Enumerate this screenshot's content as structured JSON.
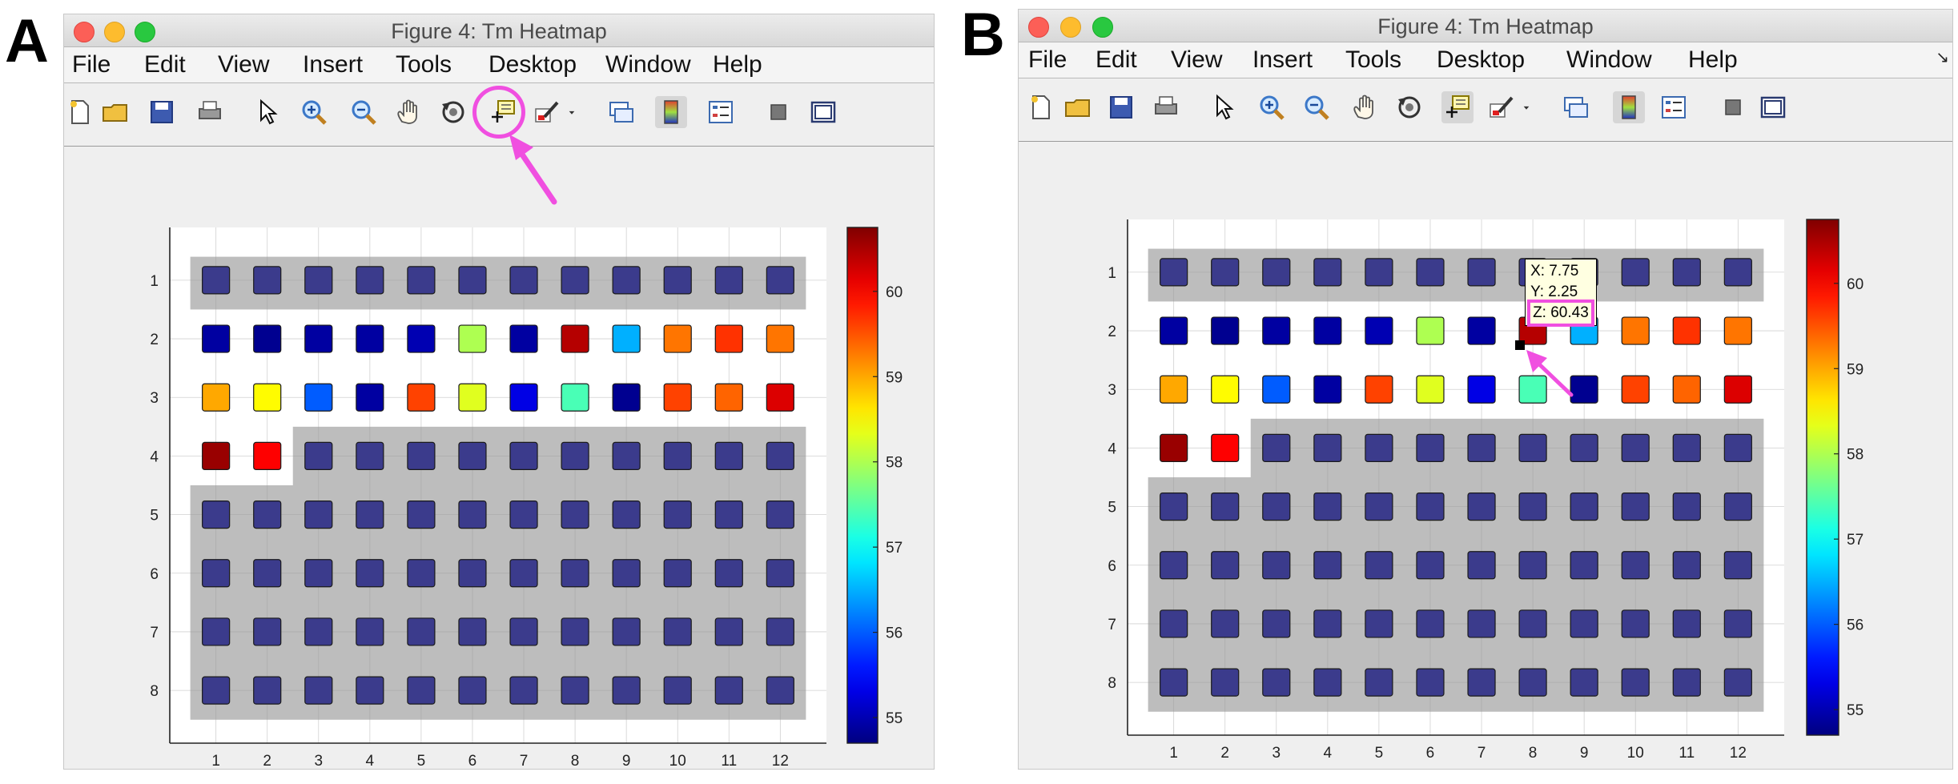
{
  "panels": [
    {
      "letter": "A",
      "window_title": "Figure 4: Tm Heatmap",
      "menu": [
        "File",
        "Edit",
        "View",
        "Insert",
        "Tools",
        "Desktop",
        "Window",
        "Help"
      ],
      "toolbar_icons": [
        "new-figure-icon",
        "open-file-icon",
        "save-icon",
        "print-icon",
        "pointer-icon",
        "zoom-in-icon",
        "zoom-out-icon",
        "pan-icon",
        "rotate-3d-icon",
        "data-cursor-icon",
        "brush-icon",
        "brush-dropdown-icon",
        "link-plot-icon",
        "colorbar-icon",
        "legend-icon",
        "hide-plot-tools-icon",
        "show-plot-tools-icon"
      ],
      "highlighted_tool": "data-cursor-icon",
      "datatip": null
    },
    {
      "letter": "B",
      "window_title": "Figure 4: Tm Heatmap",
      "menu": [
        "File",
        "Edit",
        "View",
        "Insert",
        "Tools",
        "Desktop",
        "Window",
        "Help"
      ],
      "toolbar_icons": [
        "new-figure-icon",
        "open-file-icon",
        "save-icon",
        "print-icon",
        "pointer-icon",
        "zoom-in-icon",
        "zoom-out-icon",
        "pan-icon",
        "rotate-3d-icon",
        "data-cursor-icon",
        "brush-icon",
        "brush-dropdown-icon",
        "link-plot-icon",
        "colorbar-icon",
        "legend-icon",
        "hide-plot-tools-icon",
        "show-plot-tools-icon"
      ],
      "highlighted_tool": null,
      "datatip": {
        "x_text": "X: 7.75",
        "y_text": "Y: 2.25",
        "z_text": "Z: 60.43",
        "x": 7.75,
        "y": 2.25
      }
    }
  ],
  "colors": {
    "arrow": "#f04fe0",
    "unfilled_well": "#3b3b8c",
    "masked_region": "#bdbdbd"
  },
  "chart_data": {
    "type": "heatmap",
    "title": "",
    "xlabel": "",
    "ylabel": "",
    "x": [
      1,
      2,
      3,
      4,
      5,
      6,
      7,
      8,
      9,
      10,
      11,
      12
    ],
    "y": [
      1,
      2,
      3,
      4,
      5,
      6,
      7,
      8
    ],
    "xlim": [
      0.1,
      12.9
    ],
    "ylim": [
      0.1,
      8.9
    ],
    "y_direction": "reversed",
    "colorscale": "jet",
    "color_range": [
      54.7,
      60.75
    ],
    "colorbar_ticks": [
      55,
      56,
      57,
      58,
      59,
      60
    ],
    "grid": true,
    "values": [
      [
        null,
        null,
        null,
        null,
        null,
        null,
        null,
        null,
        null,
        null,
        null,
        null
      ],
      [
        54.9,
        54.8,
        54.9,
        54.9,
        55.0,
        58.0,
        54.9,
        60.43,
        56.5,
        59.3,
        59.7,
        59.3
      ],
      [
        59.0,
        58.5,
        56.0,
        54.9,
        59.6,
        58.3,
        55.3,
        57.4,
        54.8,
        59.6,
        59.4,
        60.2
      ],
      [
        60.6,
        60.0,
        null,
        null,
        null,
        null,
        null,
        null,
        null,
        null,
        null,
        null
      ],
      [
        null,
        null,
        null,
        null,
        null,
        null,
        null,
        null,
        null,
        null,
        null,
        null
      ],
      [
        null,
        null,
        null,
        null,
        null,
        null,
        null,
        null,
        null,
        null,
        null,
        null
      ],
      [
        null,
        null,
        null,
        null,
        null,
        null,
        null,
        null,
        null,
        null,
        null,
        null
      ],
      [
        null,
        null,
        null,
        null,
        null,
        null,
        null,
        null,
        null,
        null,
        null,
        null
      ]
    ]
  }
}
